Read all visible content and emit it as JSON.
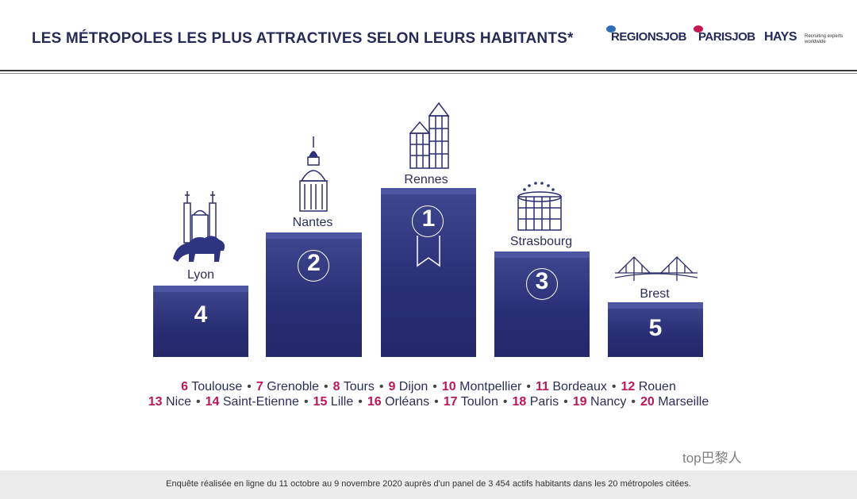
{
  "header": {
    "title": "LES MÉTROPOLES LES PLUS ATTRACTIVES SELON LEURS HABITANTS*",
    "logos": [
      {
        "text": "REGIONSJOB",
        "dot_color": "#2c6fb7"
      },
      {
        "text": "PARISJOB",
        "dot_color": "#c8174f"
      },
      {
        "text": "HAYS",
        "dot_color": ""
      }
    ],
    "hays_tagline": "Recruiting experts worldwide"
  },
  "podium": [
    {
      "rank": "1",
      "city": "Rennes",
      "icon": "timber-houses-icon"
    },
    {
      "rank": "2",
      "city": "Nantes",
      "icon": "dome-icon"
    },
    {
      "rank": "3",
      "city": "Strasbourg",
      "icon": "parliament-icon"
    },
    {
      "rank": "4",
      "city": "Lyon",
      "icon": "lion-basilica-icon"
    },
    {
      "rank": "5",
      "city": "Brest",
      "icon": "bridge-icon"
    }
  ],
  "others_row1": [
    {
      "n": "6",
      "city": "Toulouse"
    },
    {
      "n": "7",
      "city": "Grenoble"
    },
    {
      "n": "8",
      "city": "Tours"
    },
    {
      "n": "9",
      "city": "Dijon"
    },
    {
      "n": "10",
      "city": "Montpellier"
    },
    {
      "n": "11",
      "city": "Bordeaux"
    },
    {
      "n": "12",
      "city": "Rouen"
    }
  ],
  "others_row2": [
    {
      "n": "13",
      "city": "Nice"
    },
    {
      "n": "14",
      "city": "Saint-Etienne"
    },
    {
      "n": "15",
      "city": "Lille"
    },
    {
      "n": "16",
      "city": "Orléans"
    },
    {
      "n": "17",
      "city": "Toulon"
    },
    {
      "n": "18",
      "city": "Paris"
    },
    {
      "n": "19",
      "city": "Nancy"
    },
    {
      "n": "20",
      "city": "Marseille"
    }
  ],
  "separator": "•",
  "footer": "Enquête réalisée en ligne du 11 octobre au 9 novembre 2020 auprès d'un panel de 3 454 actifs habitants dans les 20 métropoles citées.",
  "watermark": "top巴黎人",
  "colors": {
    "navy": "#282e74",
    "accent": "#b8185a"
  }
}
